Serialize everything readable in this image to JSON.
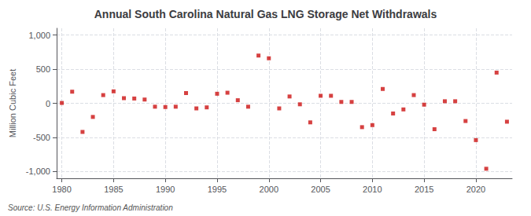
{
  "chart_data": {
    "type": "scatter",
    "title": "Annual South Carolina Natural Gas LNG Storage Net Withdrawals",
    "ylabel": "Million Cubic Feet",
    "annotations": [
      "Source: U.S. Energy Information Administration"
    ],
    "x": [
      1980,
      1981,
      1982,
      1983,
      1984,
      1985,
      1986,
      1987,
      1988,
      1989,
      1990,
      1991,
      1992,
      1993,
      1994,
      1995,
      1996,
      1997,
      1998,
      1999,
      2000,
      2001,
      2002,
      2003,
      2004,
      2005,
      2006,
      2007,
      2008,
      2009,
      2010,
      2011,
      2012,
      2013,
      2014,
      2015,
      2016,
      2017,
      2018,
      2019,
      2020,
      2021,
      2022,
      2023
    ],
    "values": [
      5,
      170,
      -420,
      -200,
      120,
      175,
      75,
      70,
      55,
      -50,
      -55,
      -50,
      150,
      -75,
      -60,
      140,
      155,
      45,
      -50,
      700,
      660,
      -75,
      100,
      -15,
      -280,
      110,
      110,
      20,
      20,
      -350,
      -320,
      210,
      -150,
      -90,
      120,
      -20,
      -380,
      30,
      30,
      -260,
      -540,
      -960,
      450,
      -270
    ],
    "color": "#cc1111",
    "marker": "square",
    "xlim": [
      1979.5,
      2023.5
    ],
    "xticks": [
      1980,
      1985,
      1990,
      1995,
      2000,
      2005,
      2010,
      2015,
      2020
    ],
    "ylim": [
      -1100,
      1100
    ],
    "yticks": [
      {
        "value": -1000,
        "label": "-1,000"
      },
      -500,
      0,
      500,
      {
        "value": 1000,
        "label": "1,000"
      }
    ],
    "grid": true
  }
}
